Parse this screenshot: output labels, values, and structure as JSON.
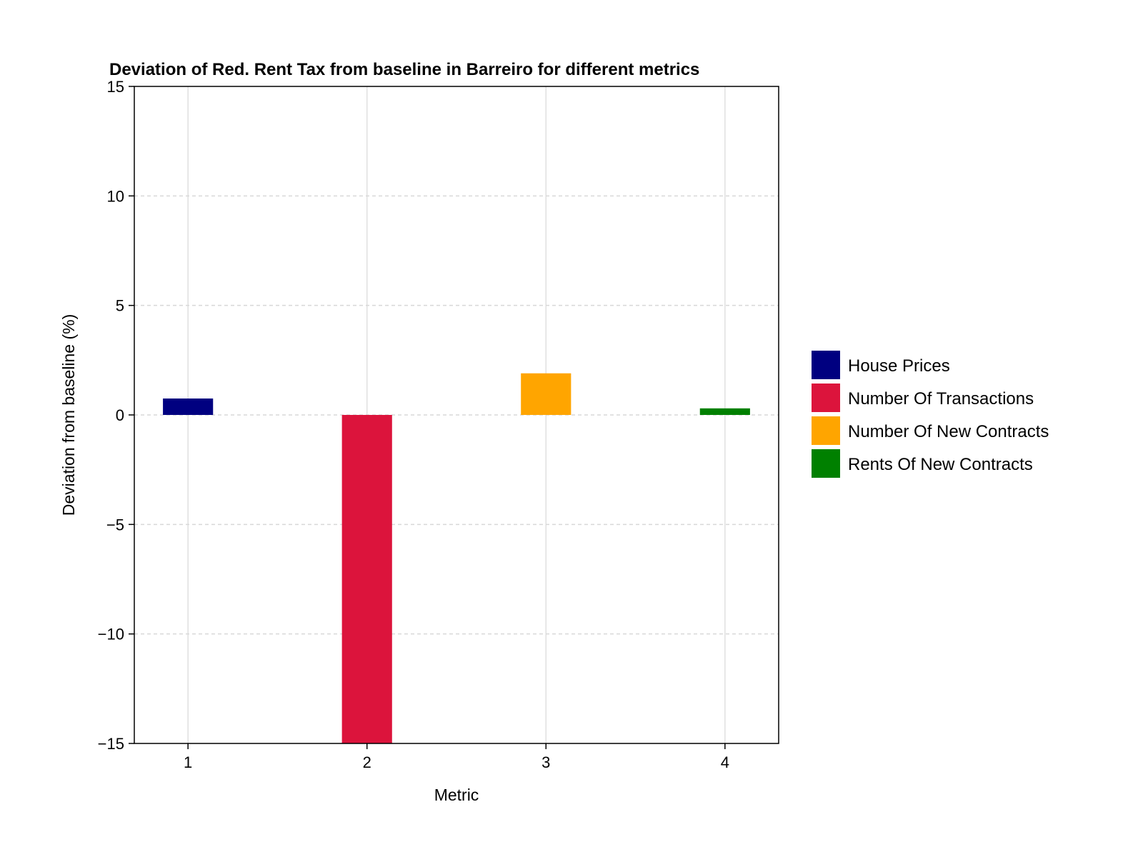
{
  "chart_data": {
    "type": "bar",
    "title": "Deviation of Red. Rent Tax from baseline in Barreiro for different metrics",
    "xlabel": "Metric",
    "ylabel": "Deviation from baseline (%)",
    "categories": [
      "1",
      "2",
      "3",
      "4"
    ],
    "x": [
      1,
      2,
      3,
      4
    ],
    "ylim": [
      -15,
      15
    ],
    "xlim": [
      0.7,
      4.3
    ],
    "yticks": [
      -15,
      -10,
      -5,
      0,
      5,
      10,
      15
    ],
    "ytick_labels": [
      "−15",
      "−10",
      "−5",
      "0",
      "5",
      "10",
      "15"
    ],
    "grid": true,
    "legend_position": "right",
    "series": [
      {
        "name": "House Prices",
        "x": 1,
        "value": 0.75,
        "color": "#000080"
      },
      {
        "name": "Number Of Transactions",
        "x": 2,
        "value": -15.0,
        "color": "#DC143C"
      },
      {
        "name": "Number Of New Contracts",
        "x": 3,
        "value": 1.9,
        "color": "#FFA500"
      },
      {
        "name": "Rents Of New Contracts",
        "x": 4,
        "value": 0.3,
        "color": "#008000"
      }
    ]
  }
}
